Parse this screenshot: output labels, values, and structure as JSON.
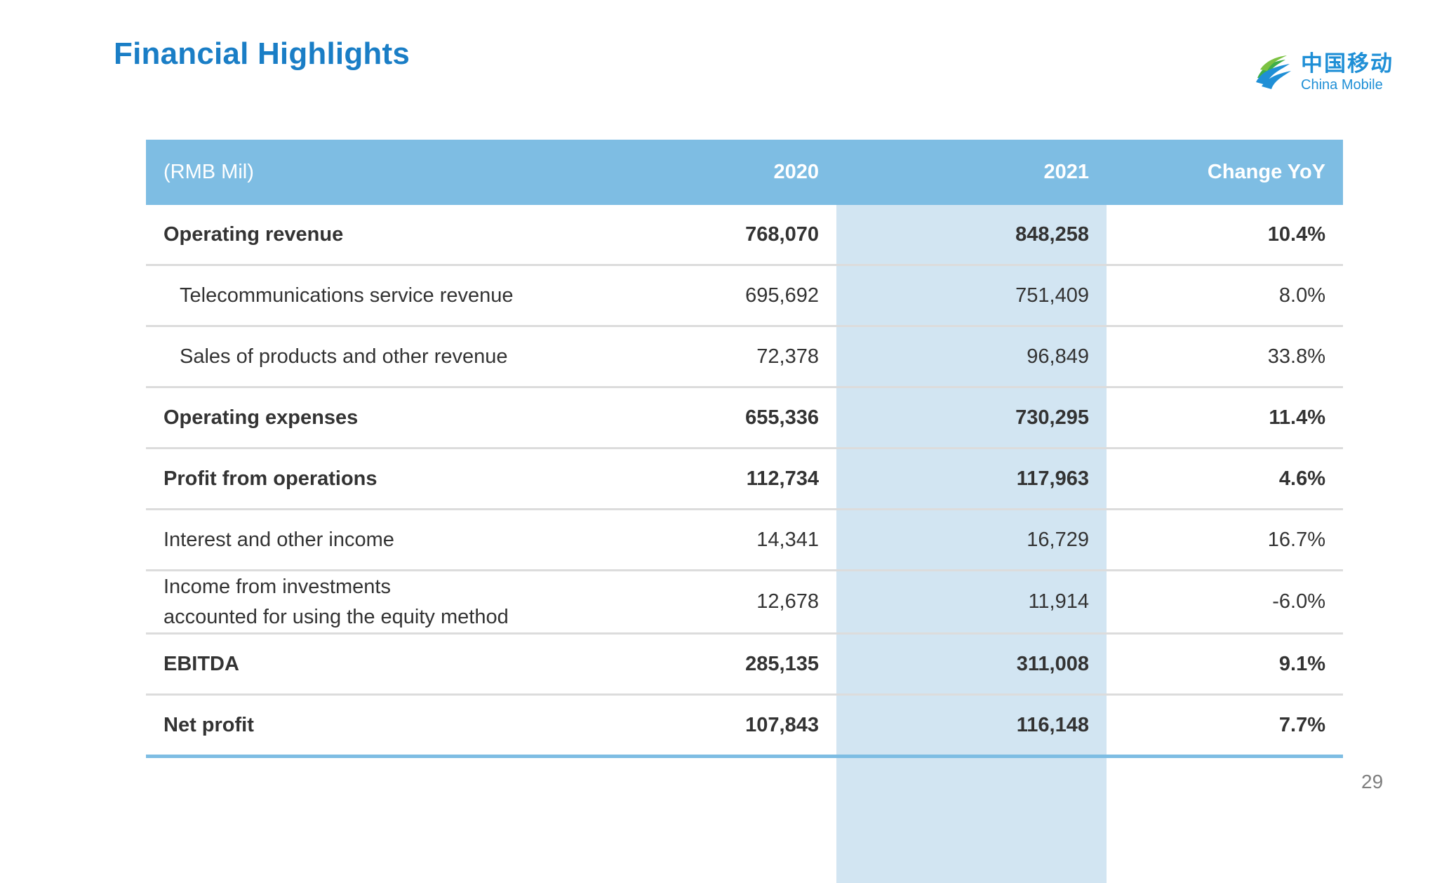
{
  "title": "Financial Highlights",
  "logo": {
    "chinese": "中国移动",
    "english": "China Mobile"
  },
  "table": {
    "headers": {
      "label": "(RMB Mil)",
      "y2020": "2020",
      "y2021": "2021",
      "change": "Change YoY"
    },
    "rows": [
      {
        "label": "Operating revenue",
        "y2020": "768,070",
        "y2021": "848,258",
        "change": "10.4%"
      },
      {
        "label": "Telecommunications service revenue",
        "y2020": "695,692",
        "y2021": "751,409",
        "change": "8.0%"
      },
      {
        "label": "Sales of products and other revenue",
        "y2020": "72,378",
        "y2021": "96,849",
        "change": "33.8%"
      },
      {
        "label": "Operating expenses",
        "y2020": "655,336",
        "y2021": "730,295",
        "change": "11.4%"
      },
      {
        "label": "Profit from operations",
        "y2020": "112,734",
        "y2021": "117,963",
        "change": "4.6%"
      },
      {
        "label": "Interest and other income",
        "y2020": "14,341",
        "y2021": "16,729",
        "change": "16.7%"
      },
      {
        "label_line1": "Income from investments",
        "label_line2": "accounted for using the equity method",
        "y2020": "12,678",
        "y2021": "11,914",
        "change": "-6.0%"
      },
      {
        "label": "EBITDA",
        "y2020": "285,135",
        "y2021": "311,008",
        "change": "9.1%"
      },
      {
        "label": "Net profit",
        "y2020": "107,843",
        "y2021": "116,148",
        "change": "7.7%"
      }
    ]
  },
  "page_number": "29",
  "colors": {
    "title": "#1a7ec6",
    "header_bg": "#7ebde3",
    "highlight_column": "#d2e5f2",
    "logo": "#1f8fd6"
  }
}
